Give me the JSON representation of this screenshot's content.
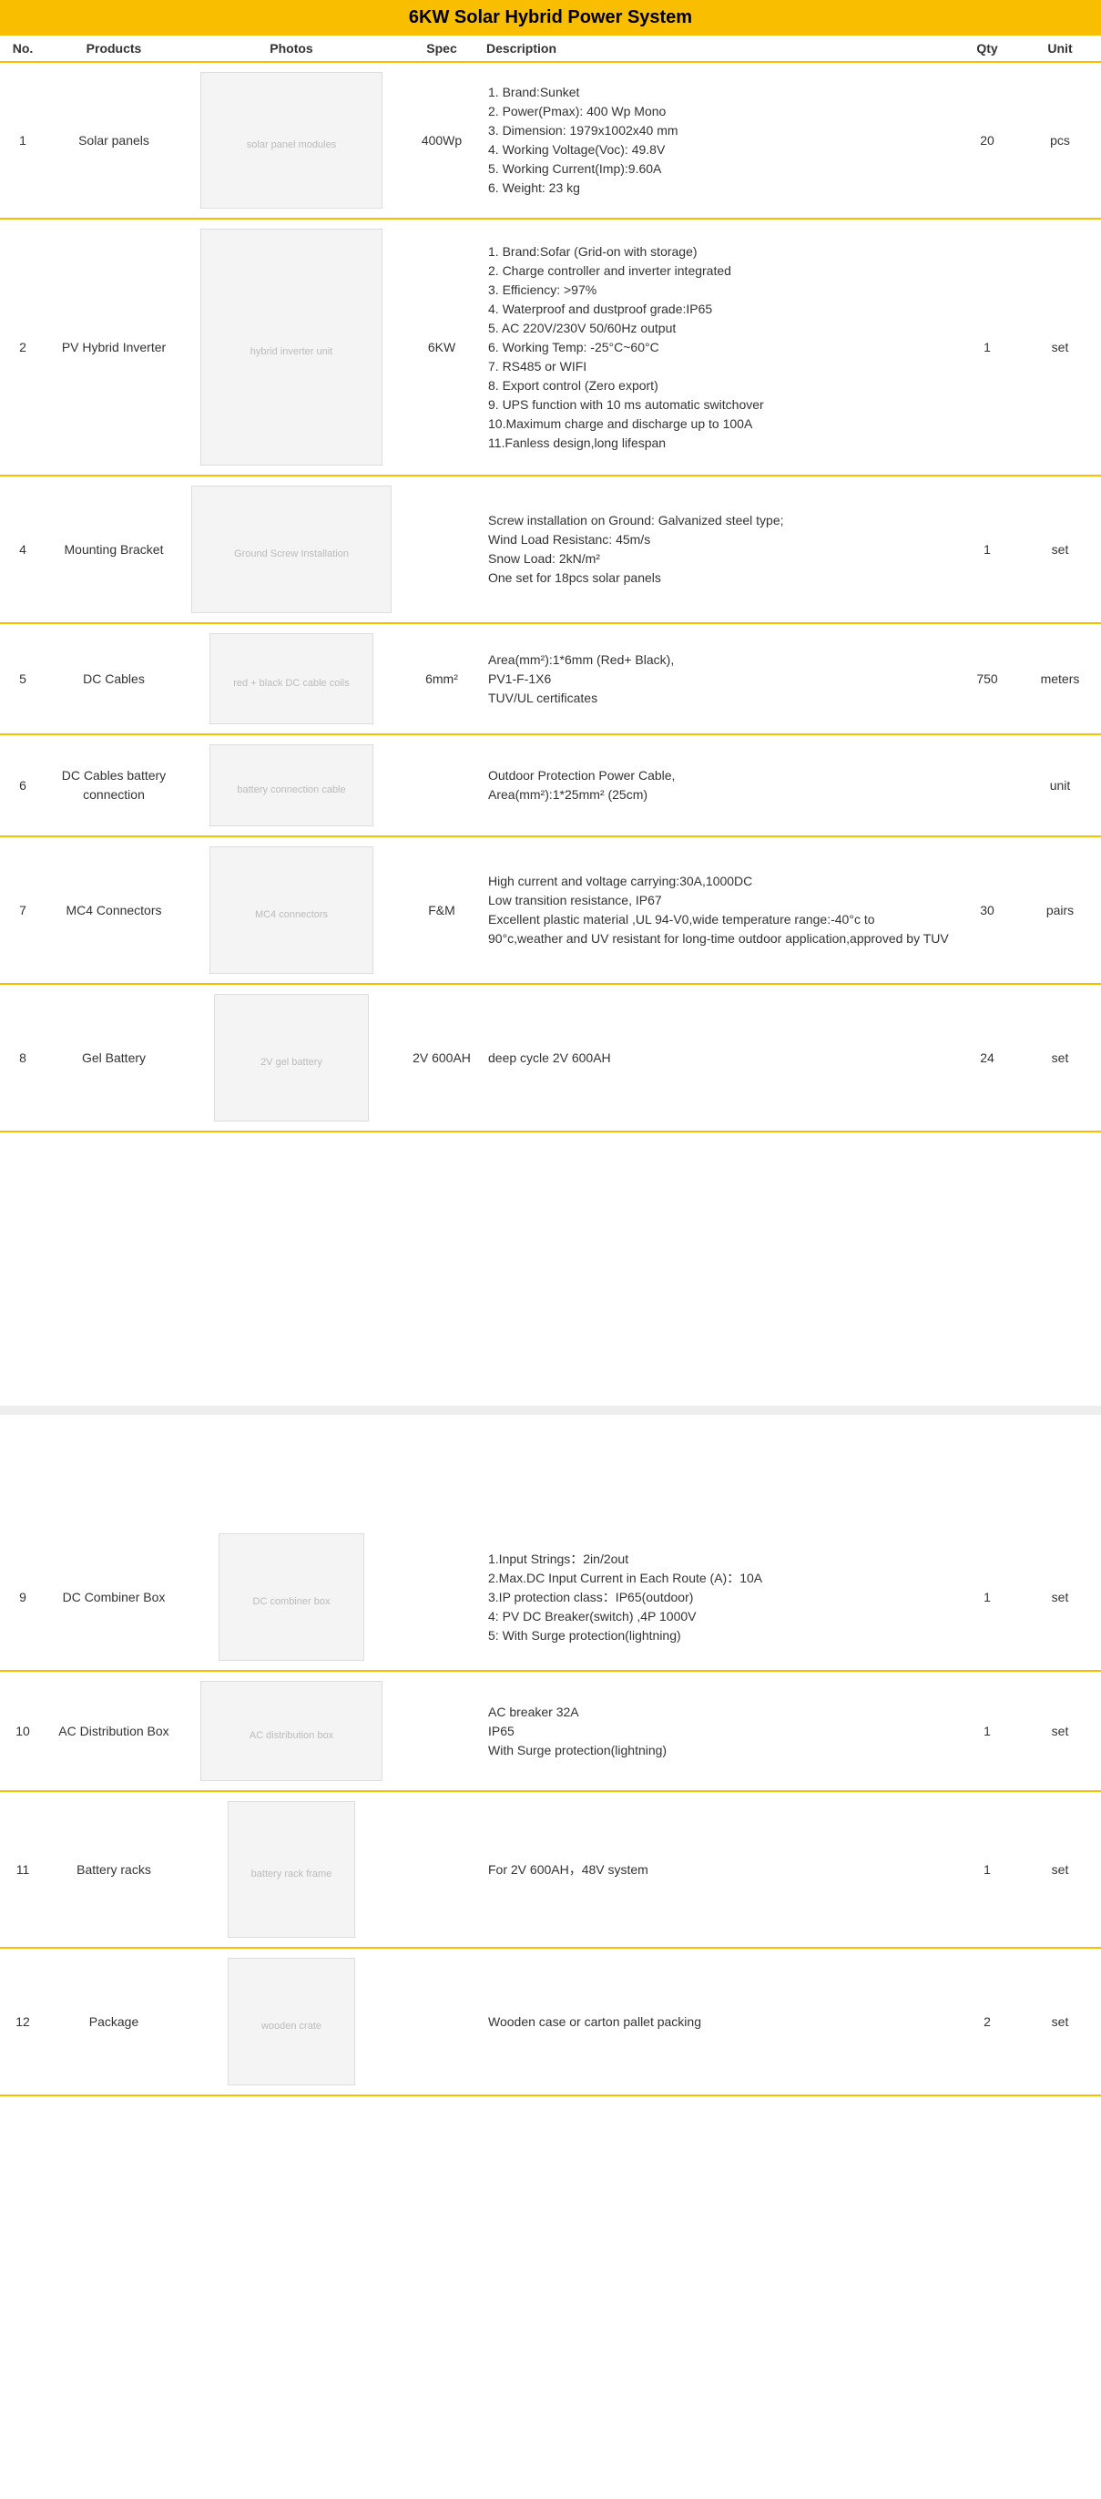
{
  "title": "6KW Solar Hybrid Power System",
  "colors": {
    "accent": "#f9be00",
    "text": "#333333",
    "background": "#ffffff",
    "gap_bar": "#eeeeee",
    "photo_bg": "#f4f4f4",
    "photo_border": "#dddddd"
  },
  "columns": {
    "no": "No.",
    "products": "Products",
    "photos": "Photos",
    "spec": "Spec",
    "description": "Description",
    "qty": "Qty",
    "unit": "Unit"
  },
  "rows_top": [
    {
      "no": "1",
      "product": "Solar panels",
      "photo_label": "solar panel modules",
      "photo_w": 200,
      "photo_h": 150,
      "spec": "400Wp",
      "description": "1. Brand:Sunket\n2. Power(Pmax): 400 Wp Mono\n3. Dimension: 1979x1002x40 mm\n4. Working Voltage(Voc): 49.8V\n5. Working Current(Imp):9.60A\n6. Weight: 23 kg",
      "qty": "20",
      "unit": "pcs"
    },
    {
      "no": "2",
      "product": "PV Hybrid Inverter",
      "photo_label": "hybrid inverter unit",
      "photo_w": 200,
      "photo_h": 260,
      "spec": "6KW",
      "description": "1. Brand:Sofar (Grid-on with storage)\n2. Charge controller and inverter integrated\n3. Efficiency: >97%\n4. Waterproof and dustproof grade:IP65\n5. AC 220V/230V 50/60Hz output\n6. Working Temp: -25°C~60°C\n7. RS485 or WIFI\n8. Export control (Zero export)\n9. UPS function with 10 ms automatic switchover\n10.Maximum charge and discharge up to 100A\n11.Fanless design,long lifespan",
      "qty": "1",
      "unit": "set"
    },
    {
      "no": "4",
      "product": "Mounting Bracket",
      "photo_label": "Ground Screw Installation",
      "photo_w": 220,
      "photo_h": 140,
      "spec": "",
      "description": "Screw installation on Ground: Galvanized steel type;\nWind Load Resistanc: 45m/s\nSnow Load: 2kN/m²\nOne set for 18pcs solar panels",
      "qty": "1",
      "unit": "set"
    },
    {
      "no": "5",
      "product": "DC Cables",
      "photo_label": "red + black DC cable coils",
      "photo_w": 180,
      "photo_h": 100,
      "spec": "6mm²",
      "description": "Area(mm²):1*6mm (Red+ Black),\nPV1-F-1X6\nTUV/UL certificates",
      "qty": "750",
      "unit": "meters"
    },
    {
      "no": "6",
      "product": "DC Cables battery connection",
      "photo_label": "battery connection cable",
      "photo_w": 180,
      "photo_h": 90,
      "spec": "",
      "description": "Outdoor Protection Power Cable,\nArea(mm²):1*25mm² (25cm)",
      "qty": "",
      "unit": "unit"
    },
    {
      "no": "7",
      "product": "MC4 Connectors",
      "photo_label": "MC4 connectors",
      "photo_w": 180,
      "photo_h": 140,
      "spec": "F&M",
      "description": "High current and voltage carrying:30A,1000DC\nLow transition resistance, IP67\nExcellent plastic material ,UL 94-V0,wide temperature range:-40°c to 90°c,weather and UV resistant for long-time outdoor application,approved by TUV",
      "qty": "30",
      "unit": "pairs"
    },
    {
      "no": "8",
      "product": "Gel Battery",
      "photo_label": "2V gel battery",
      "photo_w": 170,
      "photo_h": 140,
      "spec": "2V 600AH",
      "description": "deep cycle 2V 600AH",
      "qty": "24",
      "unit": "set"
    }
  ],
  "rows_bottom": [
    {
      "no": "9",
      "product": "DC Combiner Box",
      "photo_label": "DC combiner box",
      "photo_w": 160,
      "photo_h": 140,
      "spec": "",
      "description": "1.Input Strings：2in/2out\n2.Max.DC Input Current in Each Route (A)：10A\n3.IP protection class：IP65(outdoor)\n4: PV DC Breaker(switch) ,4P 1000V\n5: With Surge protection(lightning)",
      "qty": "1",
      "unit": "set"
    },
    {
      "no": "10",
      "product": "AC Distribution Box",
      "photo_label": "AC distribution box",
      "photo_w": 200,
      "photo_h": 110,
      "spec": "",
      "description": "AC breaker 32A\nIP65\nWith Surge protection(lightning)",
      "qty": "1",
      "unit": "set"
    },
    {
      "no": "11",
      "product": "Battery racks",
      "photo_label": "battery rack frame",
      "photo_w": 140,
      "photo_h": 150,
      "spec": "",
      "description": "For 2V 600AH，48V system",
      "qty": "1",
      "unit": "set"
    },
    {
      "no": "12",
      "product": "Package",
      "photo_label": "wooden crate",
      "photo_w": 140,
      "photo_h": 140,
      "spec": "",
      "description": "Wooden case or carton pallet packing",
      "qty": "2",
      "unit": "set"
    }
  ]
}
